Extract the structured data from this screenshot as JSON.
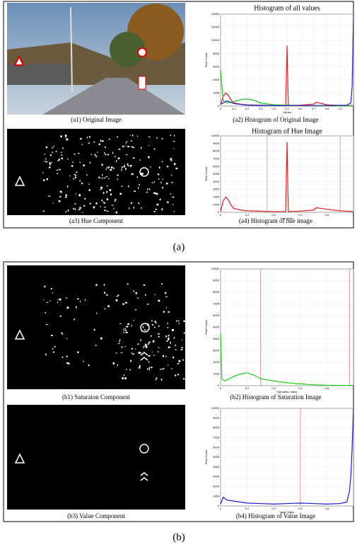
{
  "figure": {
    "labels": [
      "(a)",
      "(b)"
    ],
    "panels": [
      {
        "caption": "(a1) Original Image"
      },
      {
        "caption": "(a2) Histogram of Original Image",
        "histogram": {
          "title": "Histogram of all values",
          "xlabel": "Values",
          "ylabel": "Pixel Count",
          "xlim": [
            0,
            1
          ],
          "ylim": [
            0,
            14000
          ],
          "xticks": [
            0,
            0.1,
            0.2,
            0.3,
            0.4,
            0.5,
            0.6,
            0.7,
            0.8,
            0.9,
            1
          ],
          "yticks": [
            0,
            2000,
            4000,
            6000,
            8000,
            10000,
            12000,
            14000
          ],
          "series": [
            {
              "color": "#e02020",
              "x": [
                0,
                0.02,
                0.04,
                0.06,
                0.08,
                0.1,
                0.15,
                0.2,
                0.3,
                0.4,
                0.49,
                0.5,
                0.51,
                0.6,
                0.7,
                0.72,
                0.8,
                0.9,
                1
              ],
              "values": [
                200,
                1500,
                2000,
                1600,
                900,
                500,
                300,
                200,
                150,
                100,
                100,
                9200,
                100,
                150,
                300,
                600,
                200,
                100,
                100
              ]
            },
            {
              "color": "#20c020",
              "x": [
                0,
                0.02,
                0.05,
                0.1,
                0.15,
                0.2,
                0.25,
                0.3,
                0.4,
                0.5,
                0.6,
                0.8,
                1
              ],
              "values": [
                5500,
                800,
                500,
                700,
                1000,
                1100,
                900,
                500,
                200,
                150,
                100,
                50,
                50
              ]
            },
            {
              "color": "#2020d0",
              "x": [
                0,
                0.05,
                0.1,
                0.2,
                0.4,
                0.6,
                0.8,
                0.95,
                0.98,
                0.99,
                1
              ],
              "values": [
                300,
                800,
                400,
                150,
                100,
                100,
                100,
                150,
                500,
                3000,
                14000
              ]
            }
          ],
          "thresholds": []
        }
      },
      {
        "caption": "(a3) Hue Component"
      },
      {
        "caption": "(a4) Histogram of hue image",
        "histogram": {
          "title": "Histogram of Hue Image",
          "xlabel": "Hue Value",
          "ylabel": "Pixel Count",
          "xlim": [
            0,
            1
          ],
          "ylim": [
            0,
            10000
          ],
          "xticks": [
            0,
            0.2,
            0.4,
            0.6,
            0.8,
            1
          ],
          "yticks": [
            0,
            1000,
            2000,
            3000,
            4000,
            5000,
            6000,
            7000,
            8000,
            9000,
            10000
          ],
          "series": [
            {
              "color": "#e02020",
              "x": [
                0,
                0.02,
                0.04,
                0.06,
                0.08,
                0.1,
                0.15,
                0.2,
                0.3,
                0.35,
                0.4,
                0.49,
                0.5,
                0.51,
                0.6,
                0.7,
                0.72,
                0.8,
                0.9,
                1
              ],
              "values": [
                100,
                1500,
                2000,
                1600,
                900,
                500,
                300,
                200,
                150,
                100,
                100,
                100,
                9200,
                100,
                150,
                300,
                600,
                400,
                200,
                100
              ]
            }
          ],
          "thresholds": [
            0.35,
            0.9
          ]
        }
      },
      {
        "caption": "(b1) Saturaion Component"
      },
      {
        "caption": "(b2) Histogram of Saturation Image",
        "histogram": {
          "xlabel": "Saturation Value",
          "ylabel": "Pixel Count",
          "xlim": [
            0,
            1
          ],
          "ylim": [
            0,
            10000
          ],
          "xticks": [
            0,
            0.2,
            0.4,
            0.6,
            0.8,
            1
          ],
          "yticks": [
            0,
            1000,
            2000,
            3000,
            4000,
            5000,
            6000,
            7000,
            8000,
            9000,
            10000
          ],
          "series": [
            {
              "color": "#20d020",
              "x": [
                0,
                0.01,
                0.03,
                0.05,
                0.1,
                0.15,
                0.2,
                0.25,
                0.3,
                0.4,
                0.5,
                0.6,
                0.7,
                0.8,
                1
              ],
              "values": [
                4500,
                600,
                400,
                500,
                800,
                1000,
                1100,
                900,
                600,
                400,
                250,
                150,
                80,
                40,
                20
              ]
            }
          ],
          "thresholds": [
            0.3,
            0.97
          ]
        }
      },
      {
        "caption": "(b3) Value Component"
      },
      {
        "caption": "(b4) Histogram of Value Image",
        "histogram": {
          "xlabel": "Value Value",
          "ylabel": "Pixel Count",
          "xlim": [
            0,
            1
          ],
          "ylim": [
            0,
            10000
          ],
          "xticks": [
            0,
            0.2,
            0.4,
            0.6,
            0.8,
            1
          ],
          "yticks": [
            0,
            1000,
            2000,
            3000,
            4000,
            5000,
            6000,
            7000,
            8000,
            9000,
            10000
          ],
          "series": [
            {
              "color": "#1a1ad0",
              "x": [
                0,
                0.02,
                0.05,
                0.1,
                0.2,
                0.3,
                0.4,
                0.5,
                0.6,
                0.7,
                0.8,
                0.9,
                0.95,
                0.97,
                0.98,
                0.99,
                1
              ],
              "values": [
                200,
                900,
                600,
                500,
                300,
                250,
                200,
                250,
                300,
                250,
                200,
                250,
                400,
                1500,
                3000,
                6000,
                10000
              ]
            }
          ],
          "thresholds": [
            0.6
          ]
        }
      }
    ]
  }
}
